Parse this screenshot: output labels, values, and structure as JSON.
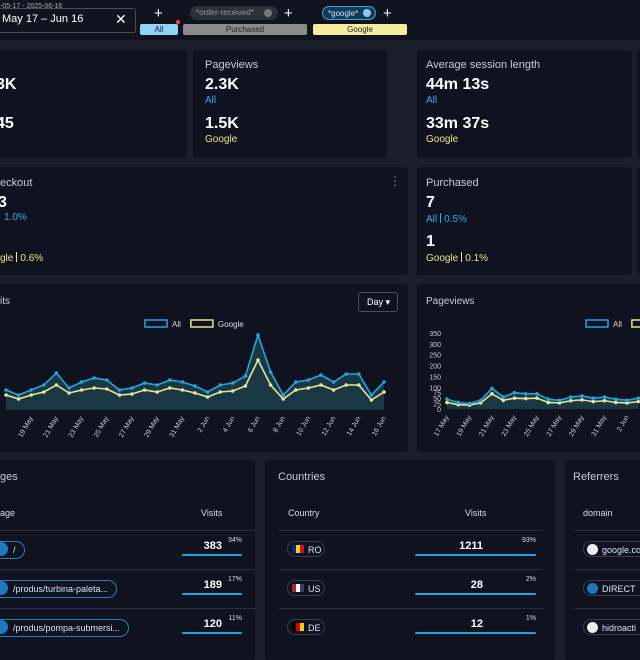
{
  "top_bar": {
    "date_range_full": "-05-17 - 2025-06-16",
    "date_range": "May 17 – Jun 16",
    "segments": [
      {
        "label": "All"
      },
      {
        "filter": "*order-received*",
        "label": "Purchased"
      },
      {
        "filter": "*google*",
        "label": "Google"
      }
    ]
  },
  "summary_cards": [
    {
      "primary": "3K",
      "secondary": "45"
    },
    {
      "title": "Pageviews",
      "primary": "2.3K",
      "primary_label": "All",
      "secondary": "1.5K",
      "secondary_label": "Google"
    },
    {
      "title": "Average session length",
      "primary": "44m 13s",
      "primary_label": "All",
      "secondary": "33m 37s",
      "secondary_label": "Google"
    }
  ],
  "conversion_cards": [
    {
      "title": "eckout",
      "primary": "3",
      "primary_rate": "1.0%",
      "secondary_label": "gle",
      "secondary_rate": "0.6%"
    },
    {
      "title": "Purchased",
      "primary": "7",
      "primary_label": "All",
      "primary_rate": "0.5%",
      "secondary": "1",
      "secondary_label": "Google",
      "secondary_rate": "0.1%"
    }
  ],
  "chart_data": [
    {
      "type": "line",
      "title": "its",
      "interval": "Day",
      "categories": [
        null,
        null,
        "19 May",
        null,
        "21 May",
        null,
        "23 May",
        null,
        "25 May",
        null,
        "27 May",
        null,
        "29 May",
        null,
        "31 May",
        null,
        "2 Jun",
        null,
        "4 Jun",
        null,
        "6 Jun",
        null,
        "8 Jun",
        null,
        "10 Jun",
        null,
        "12 Jun",
        null,
        "14 Jun",
        null,
        "16 Jun"
      ],
      "series": [
        {
          "name": "All",
          "color": "#1fa8e0",
          "values": [
            40,
            30,
            40,
            50,
            74,
            44,
            56,
            64,
            60,
            40,
            44,
            54,
            50,
            60,
            56,
            48,
            36,
            50,
            54,
            68,
            150,
            76,
            30,
            56,
            60,
            70,
            56,
            72,
            72,
            30,
            56
          ]
        },
        {
          "name": "Google",
          "color": "#e8e39a",
          "values": [
            30,
            22,
            30,
            36,
            50,
            34,
            40,
            44,
            42,
            30,
            32,
            40,
            36,
            44,
            40,
            34,
            26,
            36,
            38,
            48,
            100,
            50,
            22,
            40,
            44,
            50,
            40,
            50,
            50,
            20,
            36
          ]
        }
      ],
      "ylim": [
        0,
        160
      ]
    },
    {
      "type": "line",
      "title": "Pageviews",
      "categories": [
        "17 May",
        null,
        "19 May",
        null,
        "21 May",
        null,
        "23 May",
        null,
        "25 May",
        null,
        "27 May",
        null,
        "29 May",
        null,
        "31 May",
        null,
        "2 Jun",
        null
      ],
      "series": [
        {
          "name": "All",
          "color": "#1fa8e0",
          "values": [
            45,
            30,
            25,
            40,
            95,
            55,
            75,
            70,
            70,
            45,
            40,
            55,
            60,
            50,
            55,
            45,
            40,
            50
          ]
        },
        {
          "name": "Google",
          "color": "#e8e39a",
          "values": [
            30,
            20,
            18,
            28,
            70,
            40,
            50,
            48,
            50,
            30,
            28,
            38,
            42,
            34,
            38,
            30,
            28,
            34
          ]
        }
      ],
      "ylim": [
        0,
        350
      ],
      "yticks": [
        0,
        25,
        50,
        75,
        100,
        150,
        200,
        250,
        300,
        350
      ]
    }
  ],
  "pages": {
    "title": "ges",
    "columns": [
      "age",
      "Visits"
    ],
    "rows": [
      {
        "path": "/",
        "visits": 383,
        "share": "34%"
      },
      {
        "path": "/produs/turbina-paleta...",
        "visits": 189,
        "share": "17%"
      },
      {
        "path": "/produs/pompa-submersi...",
        "visits": 120,
        "share": "11%"
      }
    ]
  },
  "countries": {
    "title": "Countries",
    "columns": [
      "Country",
      "Visits"
    ],
    "rows": [
      {
        "code": "RO",
        "visits": 1211,
        "share": "93%"
      },
      {
        "code": "US",
        "visits": 28,
        "share": "2%"
      },
      {
        "code": "DE",
        "visits": 12,
        "share": "1%"
      }
    ]
  },
  "referrers": {
    "title": "Referrers",
    "columns": [
      "domain"
    ],
    "rows": [
      {
        "domain": "google.co"
      },
      {
        "domain": "DIRECT"
      },
      {
        "domain": "hidroacti"
      }
    ]
  }
}
